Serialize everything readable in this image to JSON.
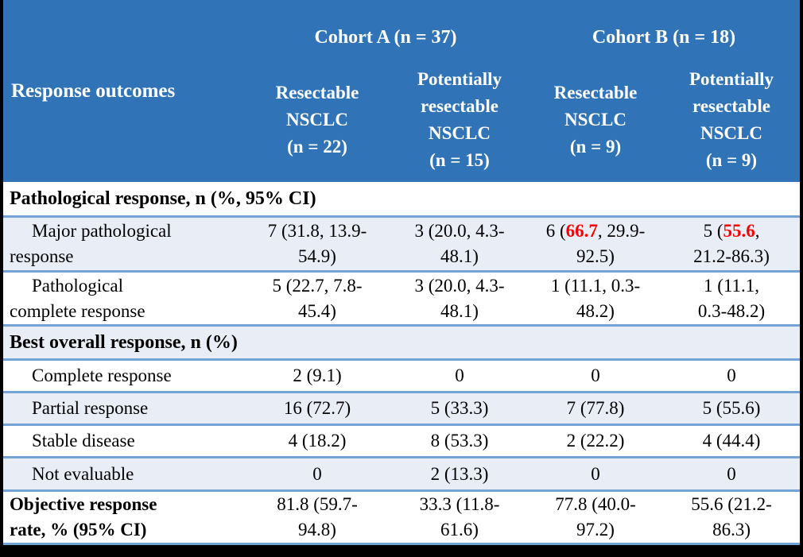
{
  "colors": {
    "header_bg": "#3074b7",
    "band_bg": "#e9edf6",
    "row_border": "#74a3d6",
    "highlight_red": "#ff0000",
    "frame_black": "#000000",
    "header_text": "#ffffff",
    "body_text": "#000000"
  },
  "table": {
    "corner_label": "Response outcomes",
    "cohort_a": "Cohort A (n = 37)",
    "cohort_b": "Cohort B (n = 18)",
    "columns": [
      "Resectable\nNSCLC\n(n = 22)",
      "Potentially\nresectable\nNSCLC\n(n = 15)",
      "Resectable\nNSCLC\n(n = 9)",
      "Potentially\nresectable\nNSCLC\n(n = 9)"
    ],
    "rows": [
      {
        "type": "section",
        "label": "Pathological response, n (%, 95% CI)"
      },
      {
        "type": "data",
        "label": "Major pathological\nresponse",
        "cells": [
          "7 (31.8, 13.9-\n54.9)",
          "3 (20.0, 4.3-\n48.1)",
          {
            "pre": "6 (",
            "red": "66.7",
            "post": ", 29.9-\n92.5)"
          },
          {
            "pre": "5 (",
            "red": "55.6",
            "post": ",\n21.2-86.3)"
          }
        ]
      },
      {
        "type": "data",
        "label": "Pathological\ncomplete response",
        "cells": [
          "5 (22.7, 7.8-\n45.4)",
          "3 (20.0, 4.3-\n48.1)",
          "1 (11.1, 0.3-\n48.2)",
          "1 (11.1,\n0.3-48.2)"
        ]
      },
      {
        "type": "section",
        "label": "Best overall response, n (%)"
      },
      {
        "type": "data",
        "label": "Complete response",
        "cells": [
          "2 (9.1)",
          "0",
          "0",
          "0"
        ]
      },
      {
        "type": "data",
        "label": "Partial response",
        "cells": [
          "16 (72.7)",
          "5 (33.3)",
          "7 (77.8)",
          "5 (55.6)"
        ]
      },
      {
        "type": "data",
        "label": "Stable disease",
        "cells": [
          "4 (18.2)",
          "8 (53.3)",
          "2 (22.2)",
          "4 (44.4)"
        ]
      },
      {
        "type": "data",
        "label": "Not evaluable",
        "cells": [
          "0",
          "2 (13.3)",
          "0",
          "0"
        ]
      },
      {
        "type": "data",
        "label": "Objective response\nrate, % (95% CI)",
        "cells": [
          "81.8 (59.7-\n94.8)",
          "33.3 (11.8-\n61.6)",
          "77.8 (40.0-\n97.2)",
          "55.6 (21.2-\n86.3)"
        ]
      }
    ]
  }
}
